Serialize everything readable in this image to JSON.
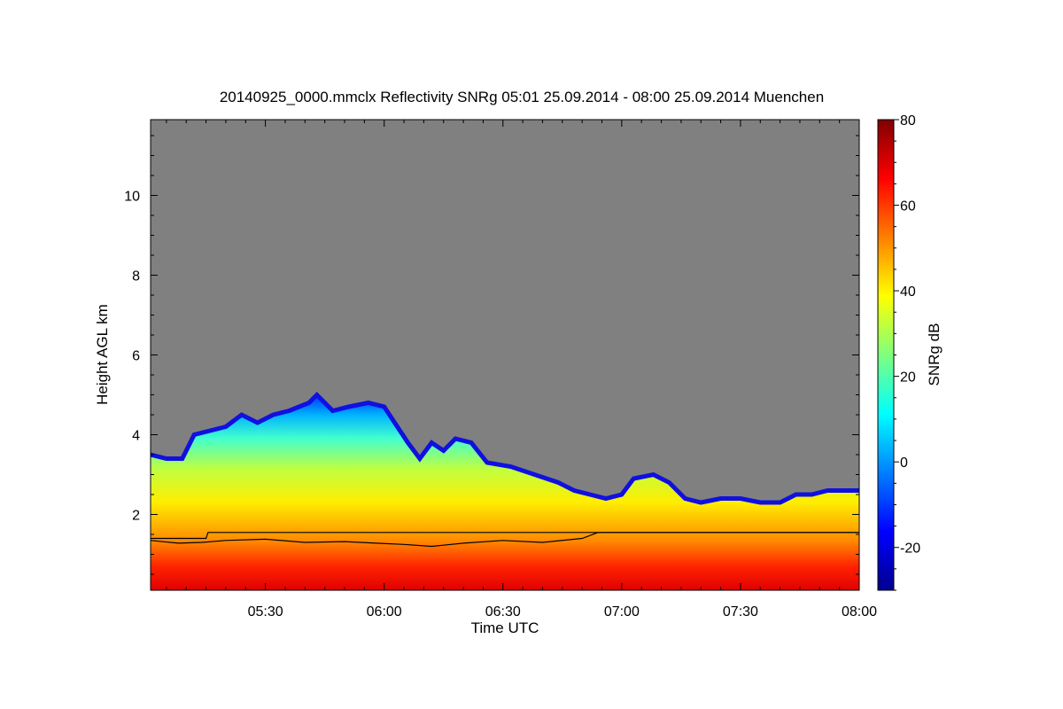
{
  "chart_data": {
    "type": "heatmap",
    "title": "20140925_0000.mmclx Reflectivity SNRg   05:01 25.09.2014 - 08:00 25.09.2014 Muenchen",
    "xlabel": "Time UTC",
    "ylabel": "Height AGL km",
    "x_range_minutes": [
      301,
      480
    ],
    "x_ticks": [
      {
        "minute": 330,
        "label": "05:30"
      },
      {
        "minute": 360,
        "label": "06:00"
      },
      {
        "minute": 390,
        "label": "06:30"
      },
      {
        "minute": 420,
        "label": "07:00"
      },
      {
        "minute": 450,
        "label": "07:30"
      },
      {
        "minute": 480,
        "label": "08:00"
      }
    ],
    "y_range_km": [
      0.1,
      11.9
    ],
    "y_ticks": [
      {
        "value": 2,
        "label": "2"
      },
      {
        "value": 4,
        "label": "4"
      },
      {
        "value": 6,
        "label": "6"
      },
      {
        "value": 8,
        "label": "8"
      },
      {
        "value": 10,
        "label": "10"
      }
    ],
    "colorbar": {
      "label": "SNRg dB",
      "range": [
        -30,
        80
      ],
      "ticks": [
        {
          "value": -20,
          "label": "-20"
        },
        {
          "value": 0,
          "label": "0"
        },
        {
          "value": 20,
          "label": "20"
        },
        {
          "value": 40,
          "label": "40"
        },
        {
          "value": 60,
          "label": "60"
        },
        {
          "value": 80,
          "label": "80"
        }
      ]
    },
    "cloud_top_km": [
      {
        "t": 301,
        "h": 3.5
      },
      {
        "t": 305,
        "h": 3.4
      },
      {
        "t": 309,
        "h": 3.4
      },
      {
        "t": 312,
        "h": 4.0
      },
      {
        "t": 316,
        "h": 4.1
      },
      {
        "t": 320,
        "h": 4.2
      },
      {
        "t": 324,
        "h": 4.5
      },
      {
        "t": 328,
        "h": 4.3
      },
      {
        "t": 332,
        "h": 4.5
      },
      {
        "t": 336,
        "h": 4.6
      },
      {
        "t": 341,
        "h": 4.8
      },
      {
        "t": 343,
        "h": 5.0
      },
      {
        "t": 347,
        "h": 4.6
      },
      {
        "t": 351,
        "h": 4.7
      },
      {
        "t": 356,
        "h": 4.8
      },
      {
        "t": 360,
        "h": 4.7
      },
      {
        "t": 362,
        "h": 4.4
      },
      {
        "t": 366,
        "h": 3.8
      },
      {
        "t": 369,
        "h": 3.4
      },
      {
        "t": 372,
        "h": 3.8
      },
      {
        "t": 375,
        "h": 3.6
      },
      {
        "t": 378,
        "h": 3.9
      },
      {
        "t": 382,
        "h": 3.8
      },
      {
        "t": 386,
        "h": 3.3
      },
      {
        "t": 392,
        "h": 3.2
      },
      {
        "t": 398,
        "h": 3.0
      },
      {
        "t": 404,
        "h": 2.8
      },
      {
        "t": 408,
        "h": 2.6
      },
      {
        "t": 412,
        "h": 2.5
      },
      {
        "t": 416,
        "h": 2.4
      },
      {
        "t": 420,
        "h": 2.5
      },
      {
        "t": 423,
        "h": 2.9
      },
      {
        "t": 428,
        "h": 3.0
      },
      {
        "t": 432,
        "h": 2.8
      },
      {
        "t": 436,
        "h": 2.4
      },
      {
        "t": 440,
        "h": 2.3
      },
      {
        "t": 445,
        "h": 2.4
      },
      {
        "t": 450,
        "h": 2.4
      },
      {
        "t": 455,
        "h": 2.3
      },
      {
        "t": 460,
        "h": 2.3
      },
      {
        "t": 464,
        "h": 2.5
      },
      {
        "t": 468,
        "h": 2.5
      },
      {
        "t": 472,
        "h": 2.6
      },
      {
        "t": 476,
        "h": 2.6
      },
      {
        "t": 480,
        "h": 2.6
      }
    ],
    "overlay_lines_km": [
      {
        "name": "upper-line",
        "points": [
          {
            "t": 301,
            "h": 1.4
          },
          {
            "t": 315,
            "h": 1.4
          },
          {
            "t": 315.5,
            "h": 1.55
          },
          {
            "t": 480,
            "h": 1.55
          }
        ]
      },
      {
        "name": "lower-line",
        "points": [
          {
            "t": 301,
            "h": 1.35
          },
          {
            "t": 308,
            "h": 1.28
          },
          {
            "t": 314,
            "h": 1.3
          },
          {
            "t": 320,
            "h": 1.35
          },
          {
            "t": 330,
            "h": 1.38
          },
          {
            "t": 340,
            "h": 1.3
          },
          {
            "t": 350,
            "h": 1.32
          },
          {
            "t": 358,
            "h": 1.28
          },
          {
            "t": 365,
            "h": 1.25
          },
          {
            "t": 372,
            "h": 1.2
          },
          {
            "t": 380,
            "h": 1.28
          },
          {
            "t": 390,
            "h": 1.35
          },
          {
            "t": 400,
            "h": 1.3
          },
          {
            "t": 410,
            "h": 1.4
          },
          {
            "t": 414,
            "h": 1.55
          },
          {
            "t": 480,
            "h": 1.55
          }
        ]
      }
    ]
  }
}
